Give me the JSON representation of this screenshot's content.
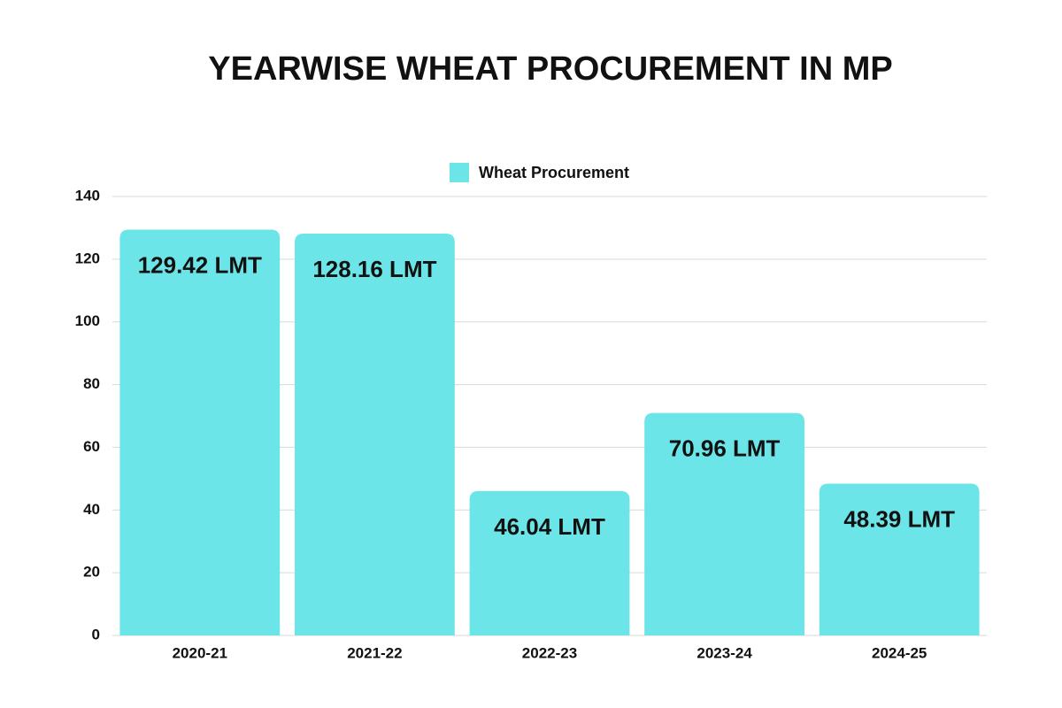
{
  "chart_data": {
    "type": "bar",
    "title": "YEARWISE WHEAT PROCUREMENT IN MP",
    "categories": [
      "2020-21",
      "2021-22",
      "2022-23",
      "2023-24",
      "2024-25"
    ],
    "series": [
      {
        "name": "Wheat Procurement",
        "color": "#6ce5e8",
        "values": [
          129.42,
          128.16,
          46.04,
          70.96,
          48.39
        ],
        "value_labels": [
          "129.42 LMT",
          "128.16 LMT",
          "46.04 LMT",
          "70.96 LMT",
          "48.39 LMT"
        ]
      }
    ],
    "ylim": [
      0,
      140
    ],
    "yticks": [
      0,
      20,
      40,
      60,
      80,
      100,
      120,
      140
    ],
    "grid": true,
    "legend": "top"
  }
}
